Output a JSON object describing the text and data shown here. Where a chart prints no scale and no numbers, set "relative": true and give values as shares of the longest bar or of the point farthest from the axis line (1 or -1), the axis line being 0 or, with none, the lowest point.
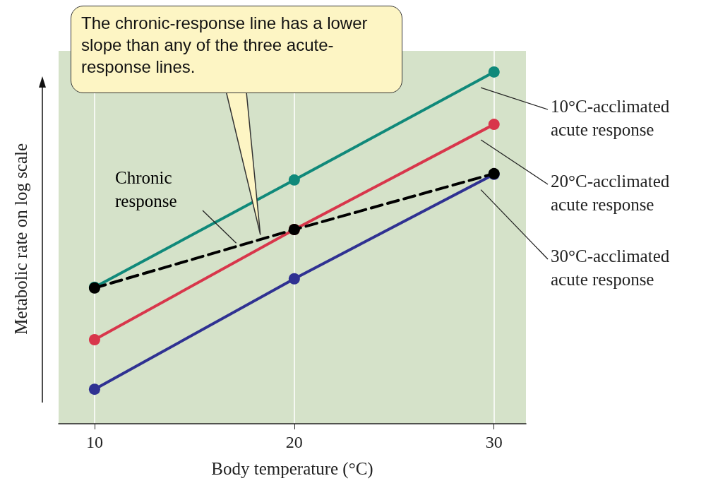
{
  "chart_data": {
    "type": "line",
    "relative": true,
    "xlabel": "Body temperature (°C)",
    "ylabel": "Metabolic rate on log scale",
    "x": [
      10,
      20,
      30
    ],
    "xlim": [
      8.2,
      31.6
    ],
    "xticks": [
      10,
      20,
      30
    ],
    "grid": "x",
    "marker": "circle",
    "annotations": [
      {
        "text": "The chronic-response line has a lower slope than any of the three acute-response lines.",
        "x": 18.3,
        "y": 0.538
      }
    ],
    "series": [
      {
        "name": "10°C-acclimated acute response",
        "color": "#10897a",
        "line_style": "solid",
        "values": [
          0.388,
          0.693,
          1
        ]
      },
      {
        "name": "20°C-acclimated acute response",
        "color": "#d8364b",
        "line_style": "solid",
        "values": [
          0.239,
          0.552,
          0.851
        ]
      },
      {
        "name": "30°C-acclimated acute response",
        "color": "#2f3192",
        "line_style": "solid",
        "values": [
          0.098,
          0.412,
          0.709
        ]
      },
      {
        "name": "Chronic response",
        "color": "#000000",
        "line_style": "dashed",
        "values": [
          0.386,
          0.552,
          0.711
        ]
      }
    ]
  }
}
